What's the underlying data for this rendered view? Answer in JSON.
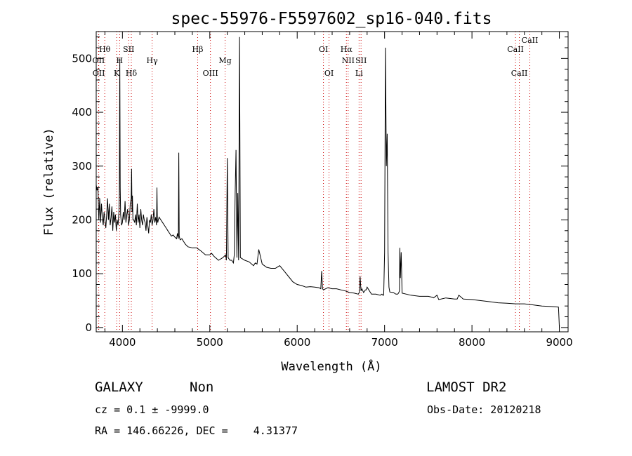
{
  "chart_data": {
    "type": "line",
    "title": "spec-55976-F5597602_sp16-040.fits",
    "xlabel": "Wavelength (Å)",
    "ylabel": "Flux (relative)",
    "xlim": [
      3700,
      9100
    ],
    "ylim": [
      -8,
      550
    ],
    "xticks": [
      4000,
      5000,
      6000,
      7000,
      8000,
      9000
    ],
    "yticks": [
      0,
      100,
      200,
      300,
      400,
      500
    ],
    "grid": false,
    "line_color": "#000000",
    "marker_color": "#cc0000",
    "series": [
      {
        "x": [
          3700,
          3710,
          3720,
          3730,
          3740,
          3750,
          3760,
          3770,
          3780,
          3790,
          3800,
          3810,
          3820,
          3830,
          3840,
          3850,
          3860,
          3870,
          3880,
          3890,
          3900,
          3910,
          3920,
          3930,
          3940,
          3950,
          3960,
          3965,
          3970,
          3975,
          3980,
          3990,
          4000,
          4010,
          4020,
          4030,
          4040,
          4050,
          4060,
          4070,
          4080,
          4090,
          4100,
          4105,
          4110,
          4115,
          4120,
          4130,
          4140,
          4150,
          4160,
          4170,
          4180,
          4190,
          4200,
          4210,
          4220,
          4230,
          4240,
          4250,
          4260,
          4270,
          4280,
          4290,
          4300,
          4310,
          4320,
          4330,
          4340,
          4350,
          4360,
          4370,
          4380,
          4390,
          4395,
          4400,
          4405,
          4410,
          4420,
          4440,
          4460,
          4480,
          4500,
          4520,
          4540,
          4560,
          4580,
          4600,
          4620,
          4630,
          4640,
          4645,
          4650,
          4660,
          4680,
          4700,
          4720,
          4750,
          4800,
          4850,
          4900,
          4950,
          5000,
          5020,
          5050,
          5100,
          5150,
          5180,
          5190,
          5200,
          5210,
          5230,
          5250,
          5270,
          5280,
          5290,
          5300,
          5310,
          5320,
          5330,
          5340,
          5350,
          5400,
          5450,
          5500,
          5520,
          5540,
          5560,
          5600,
          5650,
          5700,
          5750,
          5800,
          5850,
          5900,
          5950,
          6000,
          6050,
          6100,
          6150,
          6200,
          6250,
          6270,
          6280,
          6290,
          6300,
          6350,
          6400,
          6450,
          6500,
          6550,
          6600,
          6650,
          6700,
          6710,
          6720,
          6730,
          6740,
          6760,
          6780,
          6790,
          6800,
          6850,
          6900,
          6950,
          6970,
          6980,
          6990,
          7000,
          7010,
          7020,
          7030,
          7040,
          7050,
          7060,
          7100,
          7130,
          7150,
          7160,
          7170,
          7175,
          7180,
          7190,
          7200,
          7300,
          7400,
          7500,
          7550,
          7560,
          7600,
          7620,
          7700,
          7800,
          7830,
          7850,
          7900,
          8000,
          8100,
          8200,
          8300,
          8400,
          8500,
          8600,
          8700,
          8800,
          8900,
          8990,
          9000
        ],
        "y": [
          265,
          255,
          260,
          200,
          240,
          195,
          230,
          205,
          190,
          215,
          200,
          185,
          210,
          240,
          200,
          230,
          190,
          205,
          225,
          180,
          215,
          195,
          210,
          180,
          200,
          190,
          215,
          250,
          500,
          260,
          210,
          190,
          195,
          215,
          200,
          235,
          195,
          210,
          220,
          190,
          200,
          230,
          240,
          295,
          215,
          245,
          200,
          200,
          195,
          210,
          190,
          230,
          195,
          210,
          185,
          220,
          200,
          190,
          210,
          200,
          195,
          180,
          205,
          190,
          175,
          200,
          195,
          210,
          190,
          200,
          220,
          195,
          205,
          190,
          260,
          200,
          195,
          200,
          205,
          200,
          195,
          190,
          185,
          180,
          175,
          170,
          172,
          168,
          165,
          175,
          165,
          325,
          170,
          163,
          165,
          160,
          155,
          150,
          148,
          148,
          142,
          135,
          135,
          138,
          132,
          125,
          130,
          135,
          125,
          315,
          130,
          125,
          125,
          120,
          135,
          250,
          330,
          130,
          250,
          125,
          540,
          130,
          125,
          122,
          115,
          120,
          118,
          145,
          118,
          112,
          110,
          110,
          115,
          105,
          95,
          85,
          80,
          78,
          75,
          76,
          75,
          74,
          72,
          105,
          72,
          70,
          74,
          72,
          72,
          70,
          68,
          65,
          64,
          62,
          65,
          95,
          68,
          72,
          65,
          70,
          70,
          75,
          62,
          62,
          60,
          62,
          60,
          60,
          140,
          520,
          300,
          360,
          140,
          75,
          66,
          65,
          62,
          62,
          64,
          68,
          148,
          92,
          140,
          64,
          60,
          58,
          58,
          56,
          55,
          60,
          52,
          55,
          53,
          53,
          60,
          53,
          52,
          50,
          48,
          46,
          45,
          44,
          44,
          42,
          40,
          39,
          38,
          0
        ]
      }
    ],
    "lines": [
      {
        "label": "Hθ",
        "wl": 3798,
        "row": 1
      },
      {
        "label": "OII",
        "wl": 3727,
        "row": 2
      },
      {
        "label": "OII",
        "wl": 3729,
        "row": 3
      },
      {
        "label": "H",
        "wl": 3968,
        "row": 2
      },
      {
        "label": "K",
        "wl": 3934,
        "row": 3
      },
      {
        "label": "SII",
        "wl": 4072,
        "row": 1
      },
      {
        "label": "Hδ",
        "wl": 4102,
        "row": 3
      },
      {
        "label": "Hγ",
        "wl": 4340,
        "row": 2
      },
      {
        "label": "Hβ",
        "wl": 4861,
        "row": 1
      },
      {
        "label": "Mg",
        "wl": 5175,
        "row": 2
      },
      {
        "label": "OIII",
        "wl": 5007,
        "row": 3
      },
      {
        "label": "OI",
        "wl": 6300,
        "row": 1
      },
      {
        "label": "OI",
        "wl": 6364,
        "row": 3
      },
      {
        "label": "Hα",
        "wl": 6563,
        "row": 1
      },
      {
        "label": "NII",
        "wl": 6583,
        "row": 2
      },
      {
        "label": "Li",
        "wl": 6708,
        "row": 3
      },
      {
        "label": "SII",
        "wl": 6731,
        "row": 2
      },
      {
        "label": "CaII",
        "wl": 8498,
        "row": 1
      },
      {
        "label": "CaII",
        "wl": 8542,
        "row": 3
      },
      {
        "label": "CaII",
        "wl": 8662,
        "row": 0
      }
    ]
  },
  "info": {
    "object_type": "GALAXY",
    "subclass": "Non",
    "survey": "LAMOST DR2",
    "cz": "cz = 0.1 ± -9999.0",
    "obs_date": "Obs-Date: 20120218",
    "coords": "RA = 146.66226, DEC =    4.31377"
  }
}
